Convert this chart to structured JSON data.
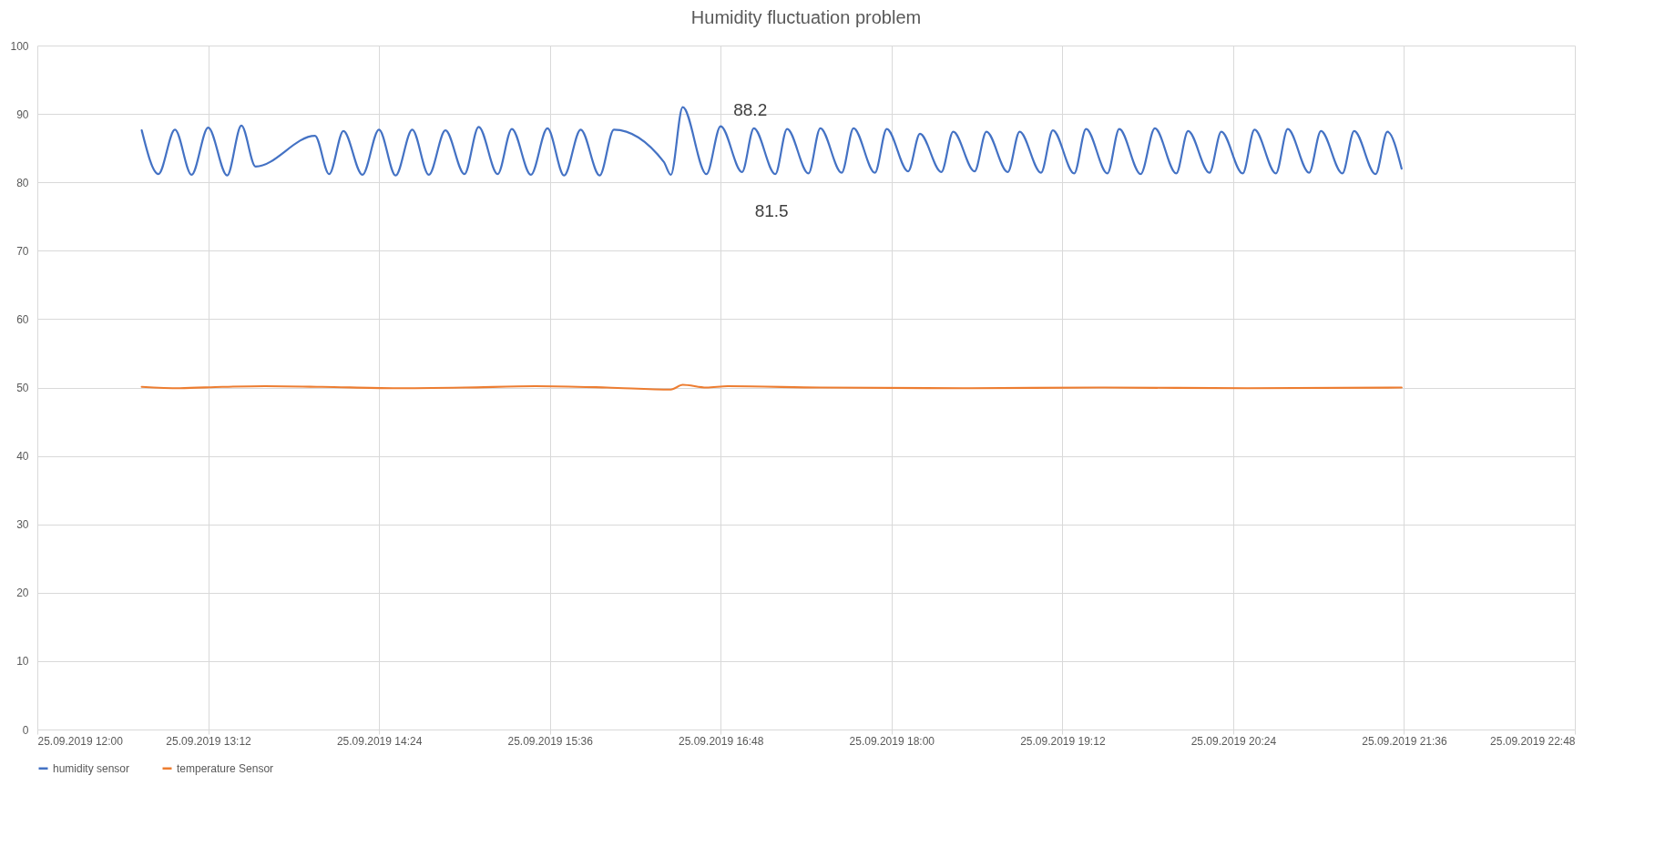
{
  "chart_data": {
    "type": "line",
    "title": "Humidity fluctuation problem",
    "xlim": [
      "2019-09-25T12:00",
      "2019-09-25T22:48"
    ],
    "xticks": [
      {
        "value": "2019-09-25T12:00",
        "label": "25.09.2019 12:00"
      },
      {
        "value": "2019-09-25T13:12",
        "label": "25.09.2019 13:12"
      },
      {
        "value": "2019-09-25T14:24",
        "label": "25.09.2019 14:24"
      },
      {
        "value": "2019-09-25T15:36",
        "label": "25.09.2019 15:36"
      },
      {
        "value": "2019-09-25T16:48",
        "label": "25.09.2019 16:48"
      },
      {
        "value": "2019-09-25T18:00",
        "label": "25.09.2019 18:00"
      },
      {
        "value": "2019-09-25T19:12",
        "label": "25.09.2019 19:12"
      },
      {
        "value": "2019-09-25T20:24",
        "label": "25.09.2019 20:24"
      },
      {
        "value": "2019-09-25T21:36",
        "label": "25.09.2019 21:36"
      },
      {
        "value": "2019-09-25T22:48",
        "label": "25.09.2019 22:48"
      }
    ],
    "ylim": [
      0,
      100
    ],
    "yticks": [
      0,
      10,
      20,
      30,
      40,
      50,
      60,
      70,
      80,
      90,
      100
    ],
    "grid": true,
    "legend": "bottom",
    "annotations": [
      {
        "text": "88.2",
        "x": "2019-09-25T16:48",
        "y": 88.2
      },
      {
        "text": "81.5",
        "x": "2019-09-25T16:57",
        "y": 81.5
      }
    ],
    "series": [
      {
        "name": "humidity sensor",
        "color": "#4472c4",
        "x": [
          "2019-09-25T12:44",
          "2019-09-25T12:51",
          "2019-09-25T12:58",
          "2019-09-25T13:05",
          "2019-09-25T13:12",
          "2019-09-25T13:20",
          "2019-09-25T13:26",
          "2019-09-25T13:32",
          "2019-09-25T13:57",
          "2019-09-25T14:03",
          "2019-09-25T14:09",
          "2019-09-25T14:17",
          "2019-09-25T14:24",
          "2019-09-25T14:31",
          "2019-09-25T14:38",
          "2019-09-25T14:45",
          "2019-09-25T14:52",
          "2019-09-25T15:00",
          "2019-09-25T15:06",
          "2019-09-25T15:14",
          "2019-09-25T15:20",
          "2019-09-25T15:28",
          "2019-09-25T15:35",
          "2019-09-25T15:42",
          "2019-09-25T15:49",
          "2019-09-25T15:57",
          "2019-09-25T16:03",
          "2019-09-25T16:24",
          "2019-09-25T16:27",
          "2019-09-25T16:32",
          "2019-09-25T16:42",
          "2019-09-25T16:48",
          "2019-09-25T16:57",
          "2019-09-25T17:02",
          "2019-09-25T17:11",
          "2019-09-25T17:16",
          "2019-09-25T17:25",
          "2019-09-25T17:30",
          "2019-09-25T17:39",
          "2019-09-25T17:44",
          "2019-09-25T17:53",
          "2019-09-25T17:58",
          "2019-09-25T18:07",
          "2019-09-25T18:12",
          "2019-09-25T18:21",
          "2019-09-25T18:26",
          "2019-09-25T18:35",
          "2019-09-25T18:40",
          "2019-09-25T18:49",
          "2019-09-25T18:54",
          "2019-09-25T19:03",
          "2019-09-25T19:08",
          "2019-09-25T19:17",
          "2019-09-25T19:22",
          "2019-09-25T19:31",
          "2019-09-25T19:36",
          "2019-09-25T19:45",
          "2019-09-25T19:51",
          "2019-09-25T20:00",
          "2019-09-25T20:05",
          "2019-09-25T20:14",
          "2019-09-25T20:19",
          "2019-09-25T20:28",
          "2019-09-25T20:33",
          "2019-09-25T20:42",
          "2019-09-25T20:47",
          "2019-09-25T20:56",
          "2019-09-25T21:01",
          "2019-09-25T21:10",
          "2019-09-25T21:15",
          "2019-09-25T21:24",
          "2019-09-25T21:29",
          "2019-09-25T21:35"
        ],
        "values": [
          87.6,
          81.2,
          87.7,
          81.1,
          88.0,
          81.0,
          88.3,
          82.3,
          86.8,
          81.2,
          87.5,
          81.1,
          87.7,
          81.0,
          87.7,
          81.1,
          87.6,
          81.2,
          88.1,
          81.2,
          87.8,
          81.1,
          87.9,
          81.0,
          87.7,
          81.0,
          87.7,
          83.0,
          81.1,
          91.0,
          81.2,
          88.2,
          81.5,
          87.9,
          81.2,
          87.8,
          81.3,
          87.9,
          81.4,
          87.9,
          81.4,
          87.8,
          81.6,
          87.1,
          81.5,
          87.4,
          81.6,
          87.4,
          81.5,
          87.4,
          81.4,
          87.6,
          81.3,
          87.8,
          81.3,
          87.8,
          81.2,
          87.9,
          81.3,
          87.5,
          81.4,
          87.4,
          81.3,
          87.7,
          81.3,
          87.8,
          81.4,
          87.5,
          81.3,
          87.5,
          81.2,
          87.4,
          82.0
        ]
      },
      {
        "name": "temperature Sensor",
        "color": "#ed7d31",
        "x": [
          "2019-09-25T12:44",
          "2019-09-25T13:00",
          "2019-09-25T13:18",
          "2019-09-25T13:36",
          "2019-09-25T14:00",
          "2019-09-25T14:30",
          "2019-09-25T15:00",
          "2019-09-25T15:30",
          "2019-09-25T16:00",
          "2019-09-25T16:27",
          "2019-09-25T16:32",
          "2019-09-25T16:42",
          "2019-09-25T16:51",
          "2019-09-25T17:30",
          "2019-09-25T18:30",
          "2019-09-25T19:30",
          "2019-09-25T20:30",
          "2019-09-25T21:35"
        ],
        "values": [
          50.1,
          49.9,
          50.1,
          50.2,
          50.1,
          49.9,
          50.0,
          50.2,
          50.0,
          49.7,
          50.4,
          50.0,
          50.2,
          50.0,
          49.9,
          50.0,
          49.9,
          50.0
        ]
      }
    ]
  }
}
